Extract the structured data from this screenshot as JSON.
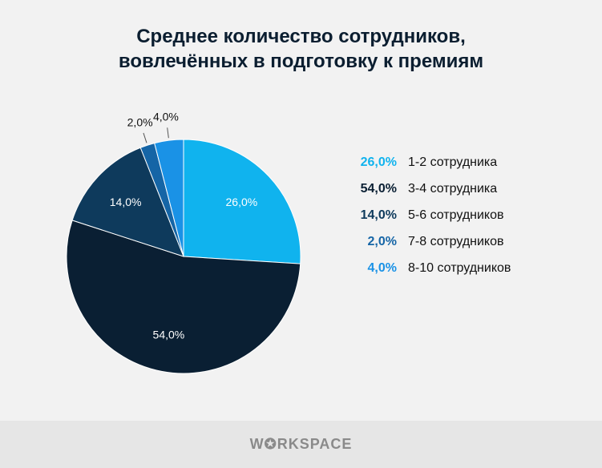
{
  "chart_data": {
    "type": "pie",
    "title": "Среднее количество сотрудников,\nвовлечённых в подготовку к премиям",
    "title_lines": [
      "Среднее количество сотрудников,",
      "вовлечённых в подготовку к премиям"
    ],
    "legend_position": "right",
    "slices": [
      {
        "name": "1-2 сотрудника",
        "value": 26.0,
        "label": "26,0%",
        "color": "#10b3ee"
      },
      {
        "name": "3-4 сотрудника",
        "value": 54.0,
        "label": "54,0%",
        "color": "#0a1f33"
      },
      {
        "name": "5-6 сотрудников",
        "value": 14.0,
        "label": "14,0%",
        "color": "#0e3a5c"
      },
      {
        "name": "7-8 сотрудников",
        "value": 2.0,
        "label": "2,0%",
        "color": "#1565a6"
      },
      {
        "name": "8-10 сотрудников",
        "value": 4.0,
        "label": "4,0%",
        "color": "#1a92e6"
      }
    ]
  },
  "footer": {
    "logo": "WORKSPACE"
  }
}
